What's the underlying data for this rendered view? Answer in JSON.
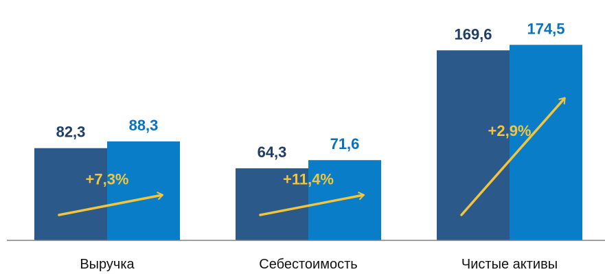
{
  "chart_data": {
    "type": "bar",
    "categories": [
      "Выручка",
      "Себестоимость",
      "Чистые активы"
    ],
    "series": [
      {
        "values": [
          82.3,
          64.3,
          169.6
        ],
        "color": "#2B5A8A",
        "label_color": "#1F3D6B"
      },
      {
        "values": [
          88.3,
          71.6,
          174.5
        ],
        "color": "#0A7DC8",
        "label_color": "#0A72BA"
      }
    ],
    "value_labels": [
      [
        "82,3",
        "64,3",
        "169,6"
      ],
      [
        "88,3",
        "71,6",
        "174,5"
      ]
    ],
    "growth_labels": [
      "+7,3%",
      "+11,4%",
      "+2,9%"
    ],
    "growth_color": "#F2C53D",
    "ylim": [
      0,
      190
    ],
    "title": "",
    "xlabel": "",
    "ylabel": "",
    "grid": false,
    "legend": "none",
    "axis_color": "#808080"
  }
}
